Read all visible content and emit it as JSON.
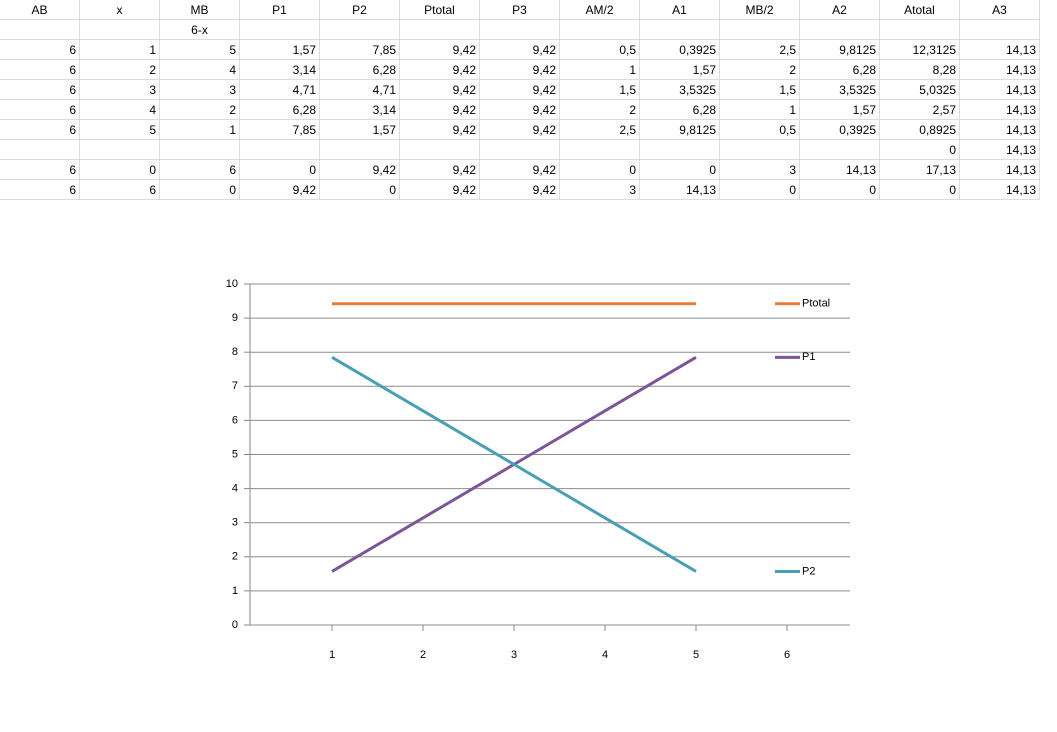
{
  "table": {
    "header": [
      "AB",
      "x",
      "MB",
      "P1",
      "P2",
      "Ptotal",
      "P3",
      "AM/2",
      "A1",
      "MB/2",
      "A2",
      "Atotal",
      "A3"
    ],
    "rows": [
      [
        null,
        null,
        "6-x",
        null,
        null,
        null,
        null,
        null,
        null,
        null,
        null,
        null,
        null
      ],
      [
        "6",
        "1",
        "5",
        "1,57",
        "7,85",
        "9,42",
        "9,42",
        "0,5",
        "0,3925",
        "2,5",
        "9,8125",
        "12,3125",
        "14,13"
      ],
      [
        "6",
        "2",
        "4",
        "3,14",
        "6,28",
        "9,42",
        "9,42",
        "1",
        "1,57",
        "2",
        "6,28",
        "8,28",
        "14,13"
      ],
      [
        "6",
        "3",
        "3",
        "4,71",
        "4,71",
        "9,42",
        "9,42",
        "1,5",
        "3,5325",
        "1,5",
        "3,5325",
        "5,0325",
        "14,13"
      ],
      [
        "6",
        "4",
        "2",
        "6,28",
        "3,14",
        "9,42",
        "9,42",
        "2",
        "6,28",
        "1",
        "1,57",
        "2,57",
        "14,13"
      ],
      [
        "6",
        "5",
        "1",
        "7,85",
        "1,57",
        "9,42",
        "9,42",
        "2,5",
        "9,8125",
        "0,5",
        "0,3925",
        "0,8925",
        "14,13"
      ],
      [
        null,
        null,
        null,
        null,
        null,
        null,
        null,
        null,
        null,
        null,
        null,
        "0",
        "14,13"
      ],
      [
        "6",
        "0",
        "6",
        "0",
        "9,42",
        "9,42",
        "9,42",
        "0",
        "0",
        "3",
        "14,13",
        "17,13",
        "14,13"
      ],
      [
        "6",
        "6",
        "0",
        "9,42",
        "0",
        "9,42",
        "9,42",
        "3",
        "14,13",
        "0",
        "0",
        "0",
        "14,13"
      ]
    ]
  },
  "chart_data": {
    "type": "line",
    "categories": [
      "1",
      "2",
      "3",
      "4",
      "5",
      "6"
    ],
    "series": [
      {
        "name": "Ptotal",
        "color": "#e3803a",
        "values": [
          9.42,
          9.42,
          9.42,
          9.42,
          9.42,
          null
        ]
      },
      {
        "name": "P1",
        "color": "#7b579a",
        "values": [
          1.57,
          3.14,
          4.71,
          6.28,
          7.85,
          null
        ]
      },
      {
        "name": "P2",
        "color": "#48a0b5",
        "values": [
          7.85,
          6.28,
          4.71,
          3.14,
          1.57,
          null
        ]
      }
    ],
    "ylim": [
      0,
      10
    ],
    "yticks": [
      0,
      1,
      2,
      3,
      4,
      5,
      6,
      7,
      8,
      9,
      10
    ],
    "grid": true,
    "legend": "right"
  }
}
